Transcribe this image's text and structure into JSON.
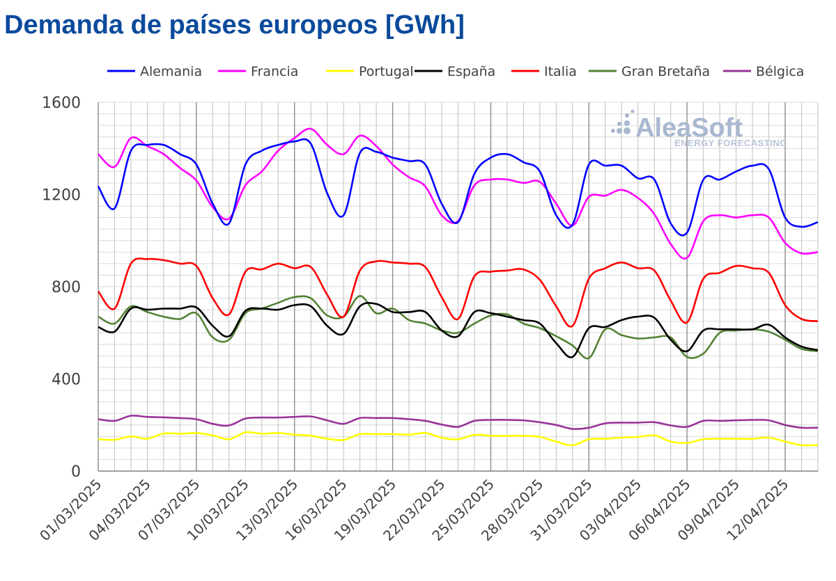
{
  "chart_data": {
    "type": "line",
    "title": "Demanda de países europeos [GWh]",
    "ylim": [
      0,
      1600
    ],
    "yticks": [
      0,
      400,
      800,
      1200,
      1600
    ],
    "grid": true,
    "legend_position": "top",
    "x_start": "01/03/2025",
    "x_end": "14/04/2025",
    "xtick_labels": [
      "01/03/2025",
      "04/03/2025",
      "07/03/2025",
      "10/03/2025",
      "13/03/2025",
      "16/03/2025",
      "19/03/2025",
      "22/03/2025",
      "25/03/2025",
      "28/03/2025",
      "31/03/2025",
      "03/04/2025",
      "06/04/2025",
      "09/04/2025",
      "12/04/2025"
    ],
    "x": [
      "01/03/2025",
      "02/03/2025",
      "03/03/2025",
      "04/03/2025",
      "05/03/2025",
      "06/03/2025",
      "07/03/2025",
      "08/03/2025",
      "09/03/2025",
      "10/03/2025",
      "11/03/2025",
      "12/03/2025",
      "13/03/2025",
      "14/03/2025",
      "15/03/2025",
      "16/03/2025",
      "17/03/2025",
      "18/03/2025",
      "19/03/2025",
      "20/03/2025",
      "21/03/2025",
      "22/03/2025",
      "23/03/2025",
      "24/03/2025",
      "25/03/2025",
      "26/03/2025",
      "27/03/2025",
      "28/03/2025",
      "29/03/2025",
      "30/03/2025",
      "31/03/2025",
      "01/04/2025",
      "02/04/2025",
      "03/04/2025",
      "04/04/2025",
      "05/04/2025",
      "06/04/2025",
      "07/04/2025",
      "08/04/2025",
      "09/04/2025",
      "10/04/2025",
      "11/04/2025",
      "12/04/2025",
      "13/04/2025",
      "14/04/2025"
    ],
    "series": [
      {
        "name": "Alemania",
        "color": "#0000ff",
        "values": [
          1235,
          1140,
          1390,
          1415,
          1415,
          1375,
          1330,
          1160,
          1075,
          1330,
          1390,
          1415,
          1430,
          1420,
          1205,
          1110,
          1380,
          1385,
          1360,
          1345,
          1330,
          1160,
          1080,
          1290,
          1360,
          1375,
          1340,
          1300,
          1110,
          1070,
          1330,
          1325,
          1325,
          1270,
          1265,
          1075,
          1035,
          1265,
          1265,
          1300,
          1325,
          1310,
          1100,
          1060,
          1080
        ]
      },
      {
        "name": "Francia",
        "color": "#ff00ff",
        "values": [
          1375,
          1320,
          1445,
          1410,
          1375,
          1315,
          1260,
          1145,
          1095,
          1240,
          1300,
          1390,
          1445,
          1485,
          1415,
          1375,
          1455,
          1410,
          1330,
          1275,
          1235,
          1110,
          1085,
          1240,
          1265,
          1265,
          1250,
          1255,
          1160,
          1065,
          1190,
          1195,
          1220,
          1185,
          1115,
          985,
          925,
          1085,
          1110,
          1100,
          1110,
          1100,
          990,
          945,
          950
        ]
      },
      {
        "name": "Portugal",
        "color": "#ffff00",
        "values": [
          138,
          136,
          150,
          140,
          163,
          162,
          165,
          155,
          138,
          168,
          162,
          165,
          158,
          153,
          140,
          135,
          160,
          160,
          160,
          158,
          165,
          145,
          138,
          157,
          153,
          153,
          153,
          148,
          128,
          112,
          138,
          140,
          145,
          148,
          155,
          128,
          122,
          138,
          140,
          140,
          140,
          145,
          128,
          112,
          113
        ]
      },
      {
        "name": "España",
        "color": "#000000",
        "values": [
          625,
          605,
          705,
          700,
          705,
          705,
          710,
          630,
          585,
          695,
          705,
          700,
          720,
          715,
          630,
          595,
          715,
          725,
          690,
          690,
          690,
          610,
          585,
          690,
          685,
          670,
          655,
          640,
          555,
          495,
          620,
          625,
          655,
          670,
          665,
          570,
          520,
          610,
          615,
          615,
          615,
          635,
          580,
          540,
          525
        ]
      },
      {
        "name": "Italia",
        "color": "#ff0000",
        "values": [
          780,
          705,
          900,
          920,
          915,
          900,
          890,
          750,
          680,
          865,
          875,
          900,
          880,
          885,
          765,
          670,
          870,
          910,
          905,
          900,
          885,
          755,
          660,
          845,
          865,
          870,
          875,
          830,
          715,
          630,
          835,
          880,
          905,
          880,
          870,
          740,
          645,
          835,
          860,
          890,
          880,
          860,
          720,
          660,
          650
        ]
      },
      {
        "name": "Gran Bretaña",
        "color": "#548235",
        "values": [
          670,
          640,
          715,
          690,
          670,
          660,
          685,
          580,
          570,
          685,
          705,
          730,
          755,
          750,
          675,
          670,
          760,
          685,
          705,
          655,
          640,
          610,
          600,
          640,
          675,
          680,
          640,
          620,
          585,
          545,
          490,
          615,
          590,
          575,
          580,
          580,
          495,
          510,
          600,
          610,
          615,
          605,
          570,
          530,
          520
        ]
      },
      {
        "name": "Bélgica",
        "color": "#993399",
        "values": [
          225,
          218,
          240,
          235,
          233,
          230,
          225,
          205,
          198,
          228,
          232,
          232,
          235,
          237,
          220,
          205,
          230,
          230,
          230,
          225,
          218,
          202,
          192,
          218,
          222,
          222,
          220,
          212,
          200,
          183,
          188,
          207,
          210,
          210,
          212,
          198,
          192,
          218,
          218,
          220,
          222,
          220,
          200,
          188,
          188
        ]
      }
    ]
  },
  "watermark": {
    "brand": "AleaSoft",
    "tagline": "ENERGY FORECASTING"
  }
}
